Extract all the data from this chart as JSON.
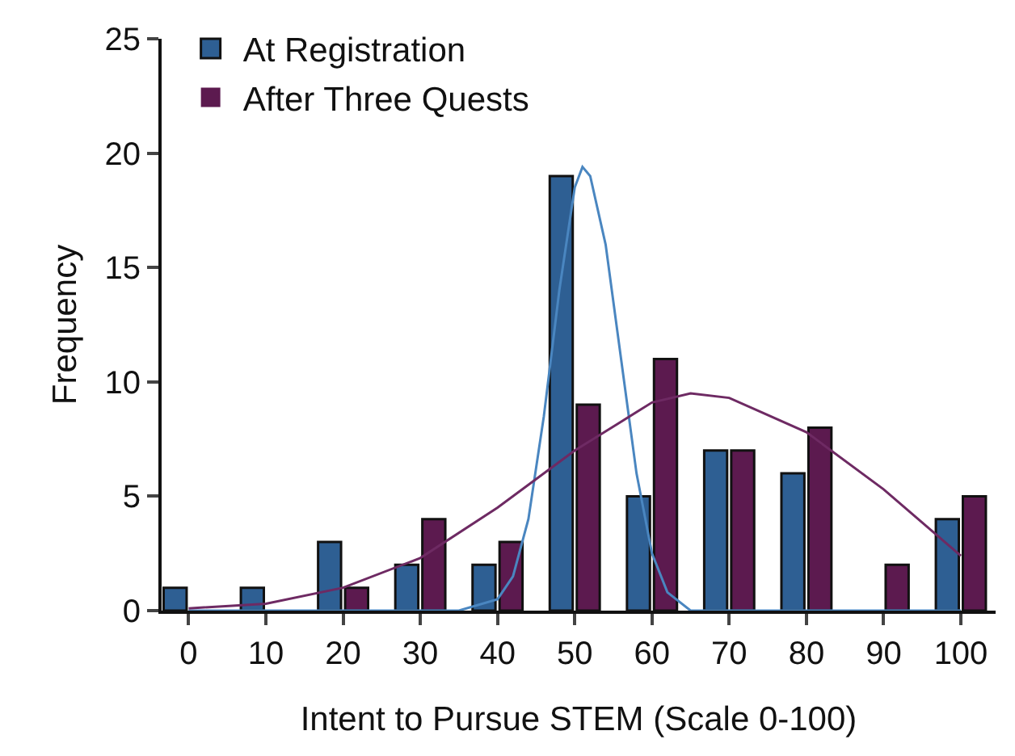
{
  "chart_data": {
    "type": "bar",
    "xlabel": "Intent to Pursue STEM (Scale 0-100)",
    "ylabel": "Frequency",
    "x": [
      0,
      10,
      20,
      30,
      40,
      50,
      60,
      70,
      80,
      90,
      100
    ],
    "series": [
      {
        "name": "At Registration",
        "color": "#2e5f93",
        "values": [
          1,
          1,
          3,
          2,
          2,
          19,
          5,
          7,
          6,
          0,
          4
        ]
      },
      {
        "name": "After Three Quests",
        "color": "#5c1a4f",
        "values": [
          0,
          0,
          1,
          4,
          3,
          9,
          11,
          7,
          8,
          2,
          5
        ]
      },
      {
        "type": "line",
        "color": "#4a86c0",
        "x": [
          0,
          20,
          35,
          40,
          42,
          44,
          46,
          48,
          50,
          51,
          52,
          54,
          56,
          58,
          60,
          62,
          65,
          80,
          100
        ],
        "values": [
          0,
          0,
          0,
          0.5,
          1.5,
          4,
          8.5,
          14,
          18.5,
          19.4,
          19,
          16,
          11,
          6,
          2.5,
          0.8,
          0,
          0,
          0
        ]
      },
      {
        "type": "line",
        "color": "#6e2a63",
        "x": [
          0,
          10,
          20,
          30,
          40,
          50,
          60,
          65,
          70,
          80,
          90,
          100
        ],
        "values": [
          0.1,
          0.3,
          1,
          2.3,
          4.5,
          7,
          9.1,
          9.5,
          9.3,
          7.8,
          5.3,
          2.4
        ]
      }
    ],
    "xlim": [
      -3.5,
      104.5
    ],
    "xticks": [
      0,
      10,
      20,
      30,
      40,
      50,
      60,
      70,
      80,
      90,
      100
    ],
    "ylim": [
      0,
      25
    ],
    "yticks": [
      0,
      5,
      10,
      15,
      20,
      25
    ],
    "grid": false,
    "legend": "top left",
    "marker": "none"
  }
}
